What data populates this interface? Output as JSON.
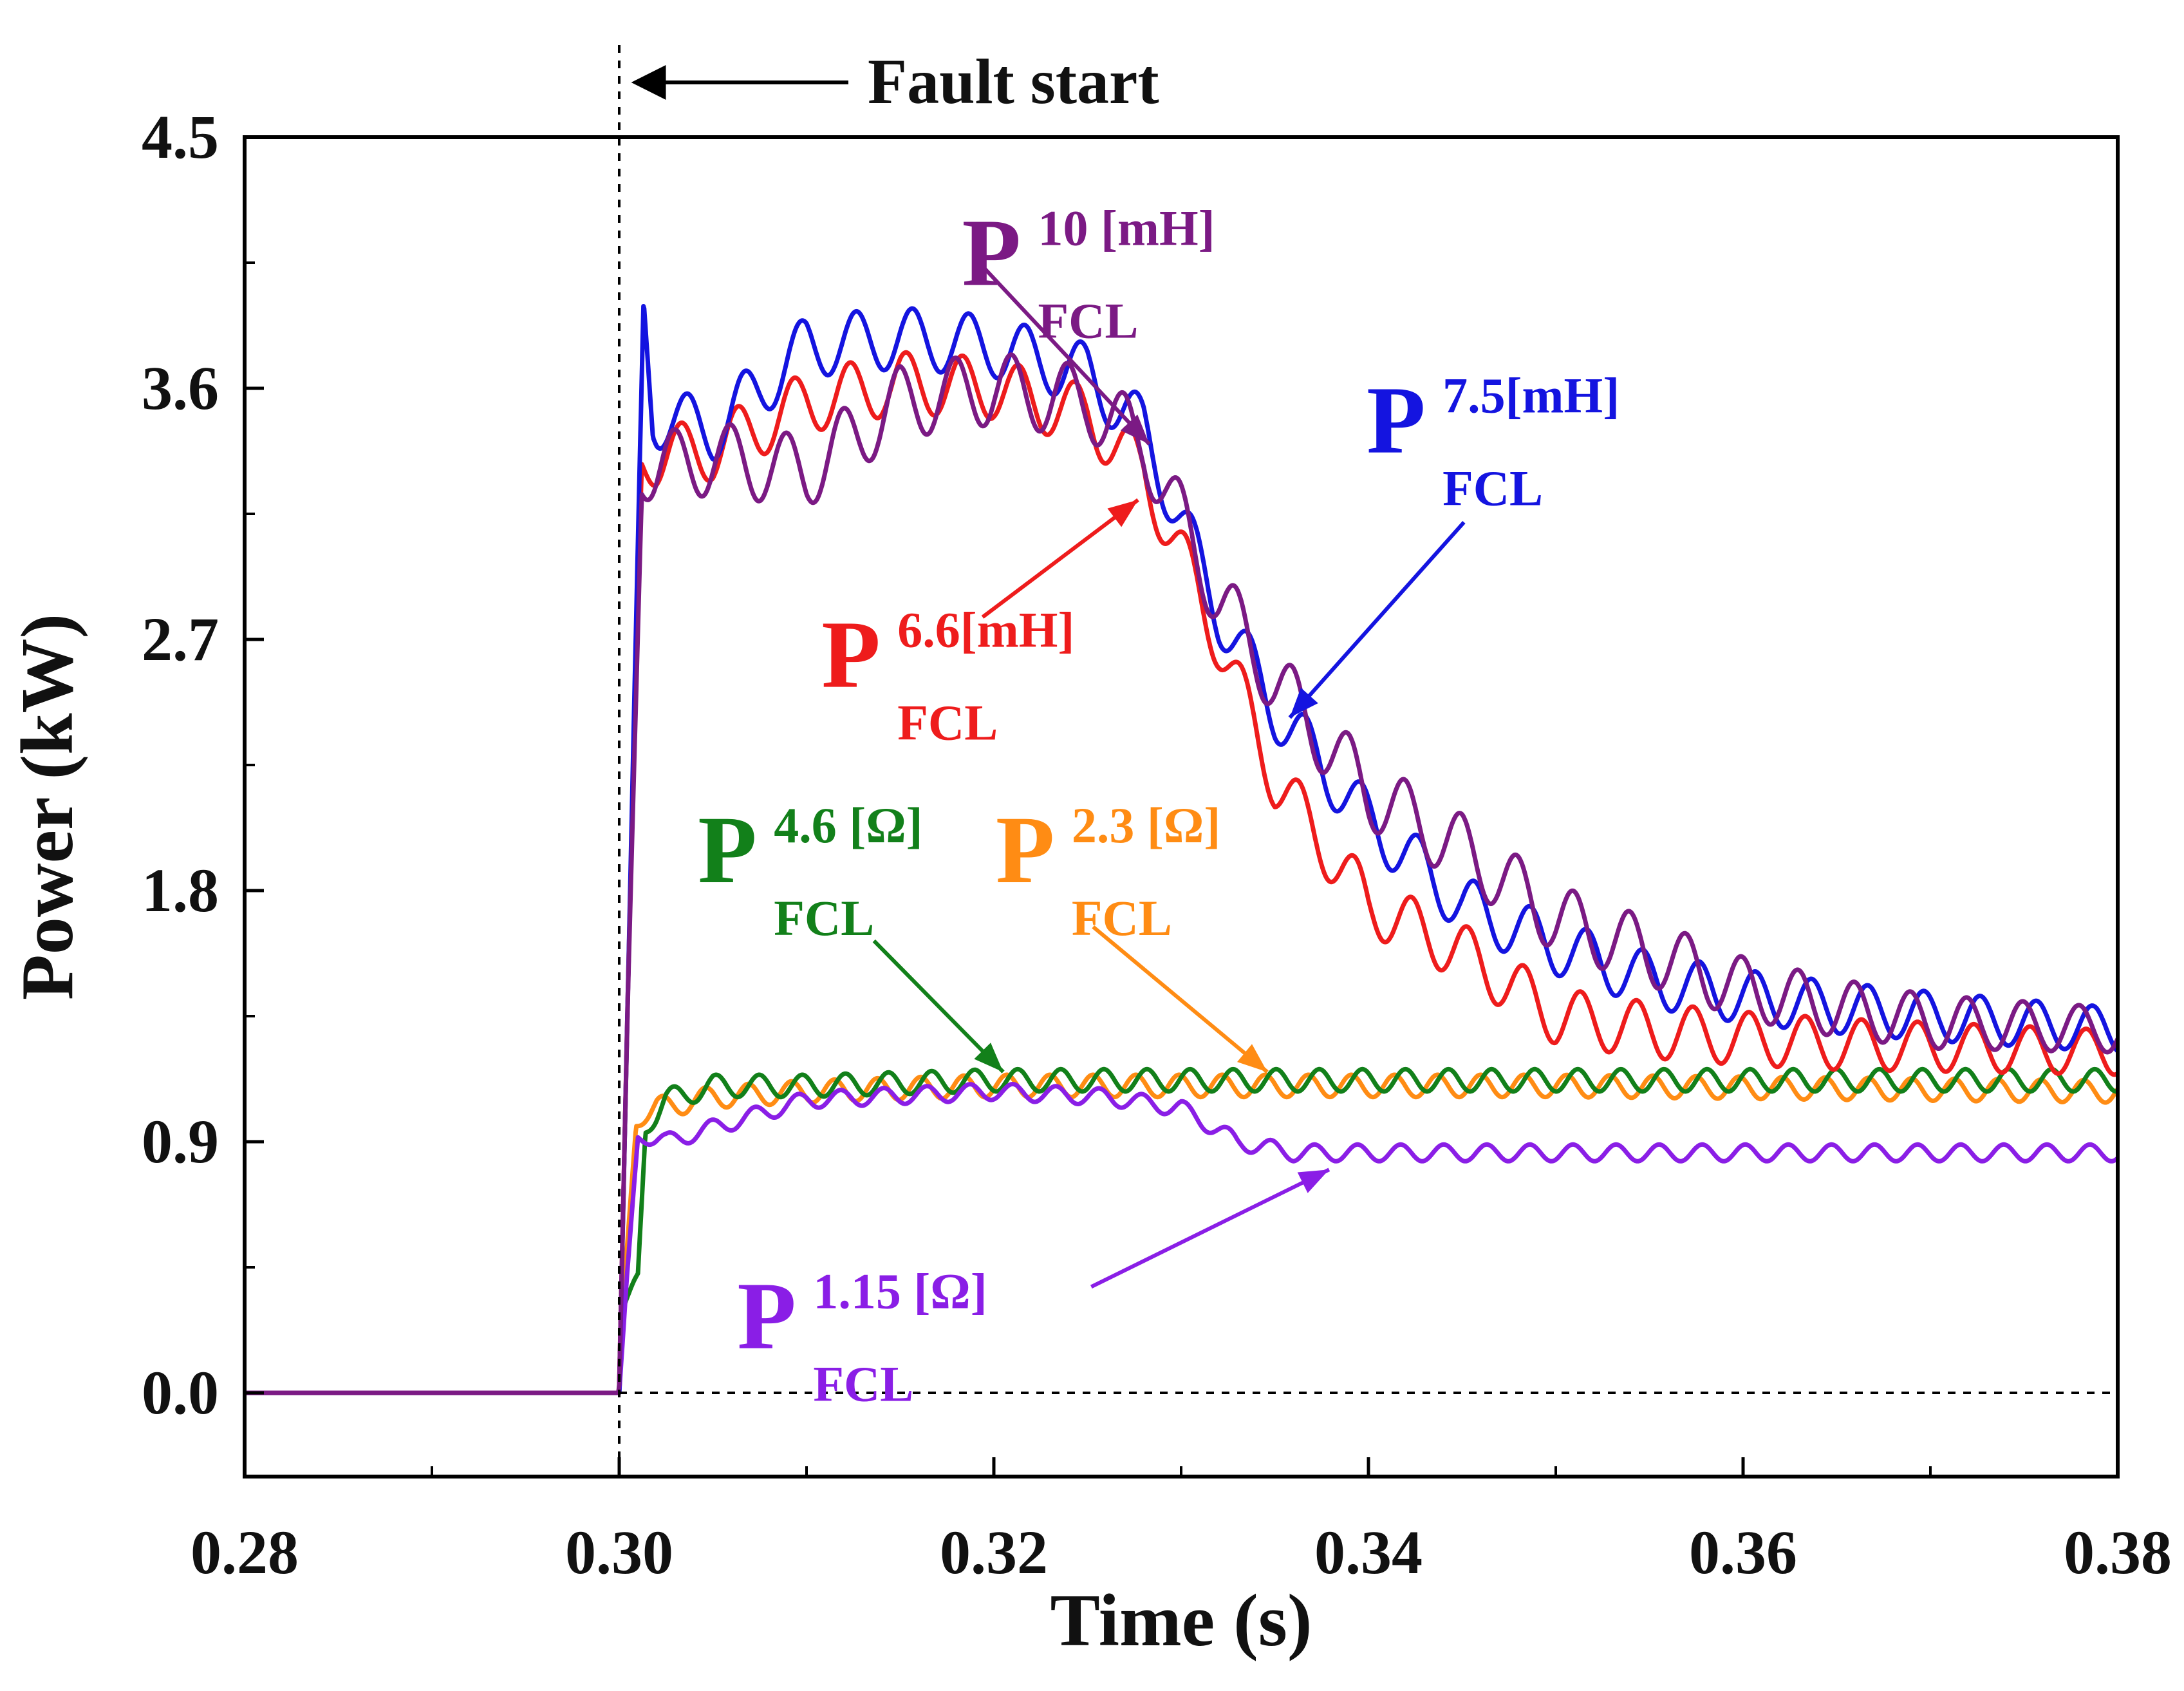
{
  "chart_data": {
    "type": "line",
    "title": "",
    "xlabel": "Time (s)",
    "ylabel": "Power  (kW)",
    "xlim": [
      0.28,
      0.38
    ],
    "ylim": [
      -0.3,
      4.5
    ],
    "xticks": [
      0.28,
      0.3,
      0.32,
      0.34,
      0.36,
      0.38
    ],
    "xtick_labels": [
      "0.28",
      "0.30",
      "0.32",
      "0.34",
      "0.36",
      "0.38"
    ],
    "yticks": [
      0.0,
      0.9,
      1.8,
      2.7,
      3.6,
      4.5
    ],
    "ytick_labels": [
      "0.0",
      "0.9",
      "1.8",
      "2.7",
      "3.6",
      "4.5"
    ],
    "fault_time": 0.3,
    "annotation": {
      "text": "Fault start",
      "x": 0.3
    },
    "series": [
      {
        "name": "P FCL 10 [mH]",
        "main": "P",
        "sup": "10 [mH]",
        "sub": "FCL",
        "color": "#7b1a84",
        "label_at": [
          0.3183,
          3.97
        ],
        "arrow_from": [
          0.3195,
          4.03
        ],
        "arrow_to": [
          0.3283,
          3.4
        ],
        "profile": [
          [
            0.28,
            0
          ],
          [
            0.3,
            0
          ],
          [
            0.3005,
            1.5
          ],
          [
            0.3012,
            3.3
          ],
          [
            0.305,
            3.35
          ],
          [
            0.31,
            3.3
          ],
          [
            0.315,
            3.55
          ],
          [
            0.32,
            3.6
          ],
          [
            0.325,
            3.55
          ],
          [
            0.328,
            3.4
          ],
          [
            0.332,
            2.85
          ],
          [
            0.335,
            2.55
          ],
          [
            0.34,
            2.15
          ],
          [
            0.345,
            1.95
          ],
          [
            0.35,
            1.7
          ],
          [
            0.355,
            1.58
          ],
          [
            0.36,
            1.45
          ],
          [
            0.365,
            1.38
          ],
          [
            0.37,
            1.33
          ],
          [
            0.38,
            1.3
          ]
        ],
        "ripple": [
          [
            0.3,
            0.03
          ],
          [
            0.302,
            0.13
          ],
          [
            0.33,
            0.13
          ],
          [
            0.355,
            0.12
          ],
          [
            0.38,
            0.08
          ]
        ],
        "period": 0.003,
        "phase": 1.7
      },
      {
        "name": "P FCL 7.5[mH]",
        "main": "P",
        "sup": "7.5[mH]",
        "sub": "FCL",
        "color": "#1414e0",
        "label_at": [
          0.3399,
          3.37
        ],
        "arrow_from": [
          0.3451,
          3.12
        ],
        "arrow_to": [
          0.3358,
          2.42
        ],
        "profile": [
          [
            0.28,
            0
          ],
          [
            0.3,
            0
          ],
          [
            0.3005,
            1.5
          ],
          [
            0.3013,
            3.9
          ],
          [
            0.3018,
            3.5
          ],
          [
            0.305,
            3.45
          ],
          [
            0.31,
            3.75
          ],
          [
            0.315,
            3.78
          ],
          [
            0.32,
            3.75
          ],
          [
            0.325,
            3.65
          ],
          [
            0.328,
            3.45
          ],
          [
            0.332,
            2.8
          ],
          [
            0.335,
            2.45
          ],
          [
            0.34,
            2.05
          ],
          [
            0.345,
            1.75
          ],
          [
            0.35,
            1.6
          ],
          [
            0.355,
            1.48
          ],
          [
            0.36,
            1.42
          ],
          [
            0.365,
            1.38
          ],
          [
            0.37,
            1.35
          ],
          [
            0.38,
            1.3
          ]
        ],
        "ripple": [
          [
            0.3,
            0.03
          ],
          [
            0.302,
            0.11
          ],
          [
            0.33,
            0.11
          ],
          [
            0.355,
            0.1
          ],
          [
            0.38,
            0.08
          ]
        ],
        "period": 0.003,
        "phase": 0.2
      },
      {
        "name": "P FCL 6.6[mH]",
        "main": "P",
        "sup": "6.6[mH]",
        "sub": "FCL",
        "color": "#ee1c1c",
        "label_at": [
          0.3108,
          2.53
        ],
        "arrow_from": [
          0.3194,
          2.78
        ],
        "arrow_to": [
          0.3277,
          3.2
        ],
        "profile": [
          [
            0.28,
            0
          ],
          [
            0.3,
            0
          ],
          [
            0.3005,
            1.5
          ],
          [
            0.3012,
            3.35
          ],
          [
            0.305,
            3.38
          ],
          [
            0.31,
            3.55
          ],
          [
            0.315,
            3.62
          ],
          [
            0.32,
            3.6
          ],
          [
            0.325,
            3.5
          ],
          [
            0.328,
            3.3
          ],
          [
            0.332,
            2.7
          ],
          [
            0.335,
            2.2
          ],
          [
            0.34,
            1.75
          ],
          [
            0.345,
            1.58
          ],
          [
            0.35,
            1.35
          ],
          [
            0.355,
            1.3
          ],
          [
            0.36,
            1.27
          ],
          [
            0.365,
            1.25
          ],
          [
            0.37,
            1.24
          ],
          [
            0.38,
            1.22
          ]
        ],
        "ripple": [
          [
            0.3,
            0.03
          ],
          [
            0.302,
            0.11
          ],
          [
            0.33,
            0.11
          ],
          [
            0.355,
            0.1
          ],
          [
            0.38,
            0.08
          ]
        ],
        "period": 0.003,
        "phase": 0.9
      },
      {
        "name": "P FCL 4.6 [Ω]",
        "main": "P",
        "sup": "4.6 [Ω]",
        "sub": "FCL",
        "color": "#12801a",
        "label_at": [
          0.3042,
          1.83
        ],
        "arrow_from": [
          0.3136,
          1.62
        ],
        "arrow_to": [
          0.3205,
          1.15
        ],
        "profile": [
          [
            0.28,
            0
          ],
          [
            0.3,
            0
          ],
          [
            0.3002,
            0.3
          ],
          [
            0.301,
            0.42
          ],
          [
            0.3014,
            0.95
          ],
          [
            0.3025,
            1.05
          ],
          [
            0.305,
            1.1
          ],
          [
            0.31,
            1.1
          ],
          [
            0.32,
            1.12
          ],
          [
            0.33,
            1.12
          ],
          [
            0.35,
            1.12
          ],
          [
            0.38,
            1.12
          ]
        ],
        "ripple": [
          [
            0.3,
            0.0
          ],
          [
            0.302,
            0.04
          ],
          [
            0.38,
            0.04
          ]
        ],
        "period": 0.0023,
        "phase": 0.0
      },
      {
        "name": "P FCL 2.3 [Ω]",
        "main": "P",
        "sup": "2.3 [Ω]",
        "sub": "FCL",
        "color": "#ff8c14",
        "label_at": [
          0.3201,
          1.83
        ],
        "arrow_from": [
          0.3253,
          1.67
        ],
        "arrow_to": [
          0.3346,
          1.15
        ],
        "profile": [
          [
            0.28,
            0
          ],
          [
            0.3,
            0
          ],
          [
            0.3004,
            0.5
          ],
          [
            0.3009,
            0.97
          ],
          [
            0.302,
            1.02
          ],
          [
            0.305,
            1.06
          ],
          [
            0.31,
            1.08
          ],
          [
            0.32,
            1.1
          ],
          [
            0.33,
            1.1
          ],
          [
            0.35,
            1.1
          ],
          [
            0.38,
            1.08
          ]
        ],
        "ripple": [
          [
            0.3,
            0.0
          ],
          [
            0.302,
            0.04
          ],
          [
            0.38,
            0.04
          ]
        ],
        "period": 0.0023,
        "phase": 1.6
      },
      {
        "name": "P FCL 1.15 [Ω]",
        "main": "P",
        "sup": "1.15 [Ω]",
        "sub": "FCL",
        "color": "#8a1ee6",
        "label_at": [
          0.3063,
          0.16
        ],
        "arrow_from": [
          0.3252,
          0.38
        ],
        "arrow_to": [
          0.3379,
          0.8
        ],
        "profile": [
          [
            0.28,
            0
          ],
          [
            0.3,
            0
          ],
          [
            0.3004,
            0.4
          ],
          [
            0.301,
            0.92
          ],
          [
            0.3025,
            0.9
          ],
          [
            0.305,
            0.95
          ],
          [
            0.31,
            1.05
          ],
          [
            0.32,
            1.08
          ],
          [
            0.326,
            1.06
          ],
          [
            0.33,
            1.02
          ],
          [
            0.333,
            0.9
          ],
          [
            0.336,
            0.86
          ],
          [
            0.34,
            0.86
          ],
          [
            0.36,
            0.86
          ],
          [
            0.38,
            0.86
          ]
        ],
        "ripple": [
          [
            0.3,
            0.0
          ],
          [
            0.302,
            0.03
          ],
          [
            0.38,
            0.03
          ]
        ],
        "period": 0.0023,
        "phase": 0.7
      }
    ]
  }
}
